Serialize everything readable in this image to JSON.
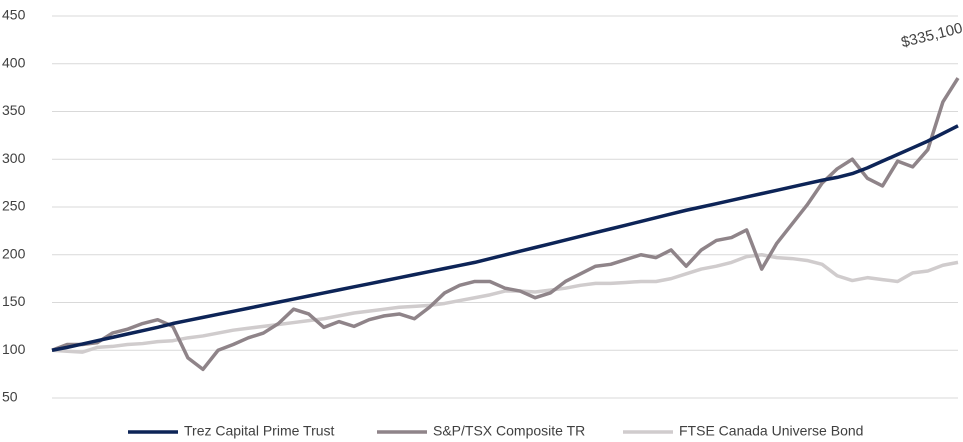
{
  "chart_data": {
    "type": "line",
    "annotation": "$335,100",
    "categories": [
      null,
      null,
      null,
      null,
      null,
      null,
      null,
      null,
      null,
      null,
      null,
      null,
      null,
      null,
      null,
      null,
      null,
      null,
      null,
      null,
      null,
      null,
      null,
      null,
      null,
      null,
      null,
      null,
      null,
      null,
      null,
      null,
      null,
      null,
      null,
      null,
      null,
      null,
      null,
      null,
      null,
      null,
      null,
      null,
      null,
      null,
      null,
      null,
      null,
      null,
      null,
      null,
      null,
      null,
      null,
      null,
      null,
      null,
      null,
      null,
      null
    ],
    "series": [
      {
        "name": "Trez Capital Prime Trust",
        "color": "#0d2457",
        "width": 3.5,
        "values": [
          100,
          103,
          106.5,
          110,
          113.5,
          117,
          120.5,
          124,
          128,
          131.2,
          134.4,
          137.6,
          140.8,
          144,
          147.2,
          150.4,
          153.6,
          156.8,
          160,
          163.2,
          166.4,
          169.6,
          172.8,
          176,
          179.2,
          182.4,
          185.6,
          188.8,
          192,
          195.9,
          199.8,
          203.7,
          207.6,
          211.5,
          215.4,
          219.3,
          223.2,
          227.1,
          231,
          234.9,
          238.8,
          242.7,
          246.6,
          250,
          253.5,
          257,
          260.5,
          264,
          267.5,
          271,
          274.5,
          278,
          281,
          285,
          291,
          298,
          305,
          312,
          319,
          327,
          335
        ]
      },
      {
        "name": "S&P/TSX Composite TR",
        "color": "#8f8489",
        "width": 3.5,
        "values": [
          100,
          106,
          106,
          108,
          118,
          122,
          128,
          132,
          125,
          92,
          80,
          100,
          106,
          113,
          118,
          128,
          143,
          138,
          124,
          130,
          125,
          132,
          136,
          138,
          133,
          145,
          160,
          168,
          172,
          172,
          165,
          162,
          155,
          160,
          172,
          180,
          188,
          190,
          195,
          200,
          197,
          205,
          188,
          205,
          215,
          218,
          226,
          185,
          212,
          232,
          252,
          275,
          290,
          300,
          280,
          272,
          298,
          292,
          310,
          360,
          385
        ]
      },
      {
        "name": "FTSE Canada Universe Bond",
        "color": "#d0cccd",
        "width": 3.5,
        "values": [
          100,
          99,
          98,
          103,
          104,
          106,
          107,
          109,
          110,
          113,
          115,
          118,
          121,
          123,
          125,
          127,
          129,
          131,
          133,
          136,
          139,
          141,
          143,
          145,
          146,
          147,
          149,
          152,
          155,
          158,
          162,
          162,
          161,
          163,
          165,
          168,
          170,
          170,
          171,
          172,
          172,
          175,
          180,
          185,
          188,
          192,
          198,
          200,
          197,
          196,
          194,
          190,
          178,
          173,
          176,
          174,
          172,
          181,
          183,
          189,
          192
        ]
      }
    ],
    "ylim": [
      50,
      450
    ],
    "yticks": [
      50,
      100,
      150,
      200,
      250,
      300,
      350,
      400,
      450
    ],
    "grid": true
  }
}
